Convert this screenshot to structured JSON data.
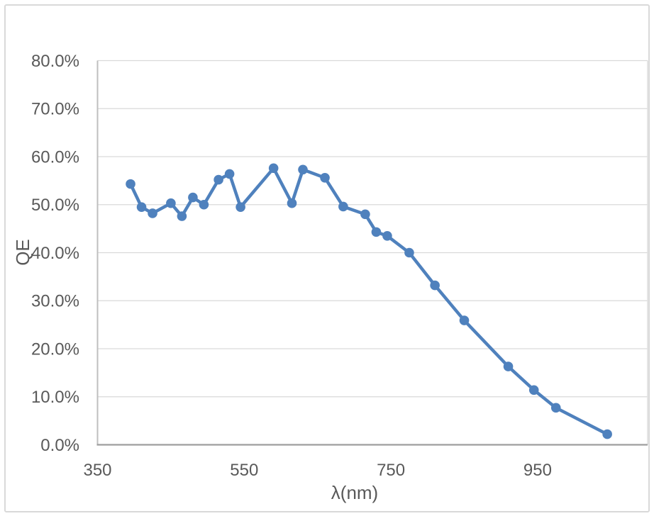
{
  "chart_data": {
    "type": "line",
    "title": "",
    "xlabel": "λ(nm)",
    "ylabel": "QE",
    "series": [
      {
        "name": "QE",
        "x": [
          395,
          410,
          425,
          450,
          465,
          480,
          495,
          515,
          530,
          545,
          590,
          615,
          630,
          660,
          685,
          715,
          730,
          745,
          775,
          810,
          850,
          910,
          945,
          975,
          1045
        ],
        "y_percent": [
          54.3,
          49.5,
          48.2,
          50.3,
          47.6,
          51.5,
          50.0,
          55.2,
          56.4,
          49.5,
          57.6,
          50.3,
          57.3,
          55.6,
          49.6,
          48.0,
          44.3,
          43.5,
          40.0,
          33.2,
          25.9,
          16.3,
          11.4,
          7.7,
          2.2
        ]
      }
    ],
    "xlim": [
      350,
      1100
    ],
    "ylim_percent": [
      0,
      80
    ],
    "x_ticks": {
      "values": [
        350,
        550,
        750,
        950
      ],
      "labels": [
        "350",
        "550",
        "750",
        "950"
      ]
    },
    "y_ticks": {
      "values_percent": [
        0,
        10,
        20,
        30,
        40,
        50,
        60,
        70,
        80
      ],
      "labels": [
        "0.0%",
        "10.0%",
        "20.0%",
        "30.0%",
        "40.0%",
        "50.0%",
        "60.0%",
        "70.0%",
        "80.0%"
      ]
    },
    "grid": "horizontal-only",
    "legend": "none",
    "marker": "circle",
    "colors": {
      "line": "#4F81BD",
      "marker": "#4F81BD",
      "gridline": "#D9D9D9",
      "plot_border": "#D9D9D9",
      "y_axis_line": "#BFBFBF",
      "x_axis_line": "#9E9E9E",
      "tick_label_text": "#595959",
      "axis_title_text": "#595959",
      "frame_border": "#D9D9D9",
      "background": "#FFFFFF"
    }
  }
}
